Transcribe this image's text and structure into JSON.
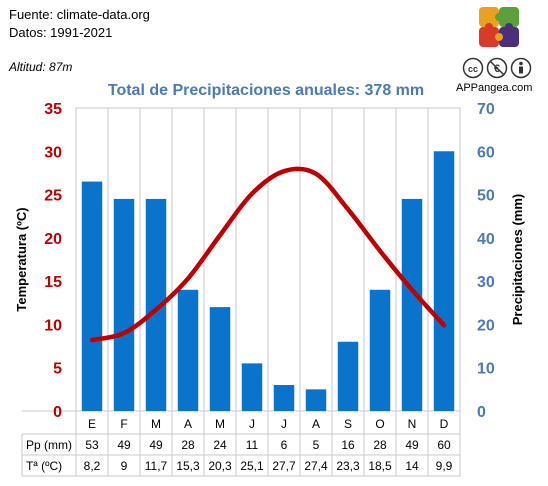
{
  "source": {
    "line1": "Fuente: climate-data.org",
    "line2": "Datos: 1991-2021"
  },
  "altitude": "Altitud: 87m",
  "brand": "APPangea.com",
  "logo_colors": [
    "#e8a21f",
    "#5aa03c",
    "#d93a2a",
    "#4b2f7a"
  ],
  "license_icons": [
    "cc-icon",
    "noncommercial-icon",
    "attribution-icon"
  ],
  "chart_data": {
    "type": "bar-line",
    "title": "Total de Precipitaciones anuales: 378 mm",
    "categories": [
      "E",
      "F",
      "M",
      "A",
      "M",
      "J",
      "J",
      "A",
      "S",
      "O",
      "N",
      "D"
    ],
    "series": [
      {
        "name": "Pp (mm)",
        "kind": "bar",
        "axis": "right",
        "color": "#0a73cc",
        "values": [
          53,
          49,
          49,
          28,
          24,
          11,
          6,
          5,
          16,
          28,
          49,
          60
        ]
      },
      {
        "name": "Tª (ºC)",
        "kind": "line",
        "axis": "left",
        "color": "#c00000",
        "values": [
          8.2,
          9,
          11.7,
          15.3,
          20.3,
          25.1,
          27.7,
          27.4,
          23.3,
          18.5,
          14,
          9.9
        ]
      }
    ],
    "table_rows": [
      {
        "label": "Pp (mm)",
        "values": [
          "53",
          "49",
          "49",
          "28",
          "24",
          "11",
          "6",
          "5",
          "16",
          "28",
          "49",
          "60"
        ]
      },
      {
        "label": "Tª (ºC)",
        "values": [
          "8,2",
          "9",
          "11,7",
          "15,3",
          "20,3",
          "25,1",
          "27,7",
          "27,4",
          "23,3",
          "18,5",
          "14",
          "9,9"
        ]
      }
    ],
    "y_left": {
      "label": "Temperatura (ºC)",
      "range": [
        0,
        35
      ],
      "ticks": [
        0,
        5,
        10,
        15,
        20,
        25,
        30,
        35
      ],
      "color": "#c00000"
    },
    "y_right": {
      "label": "Precipitaciones (mm)",
      "range": [
        0,
        70
      ],
      "ticks": [
        0,
        10,
        20,
        30,
        40,
        50,
        60,
        70
      ],
      "color": "#4a7ab8"
    },
    "grid": "vertical"
  }
}
